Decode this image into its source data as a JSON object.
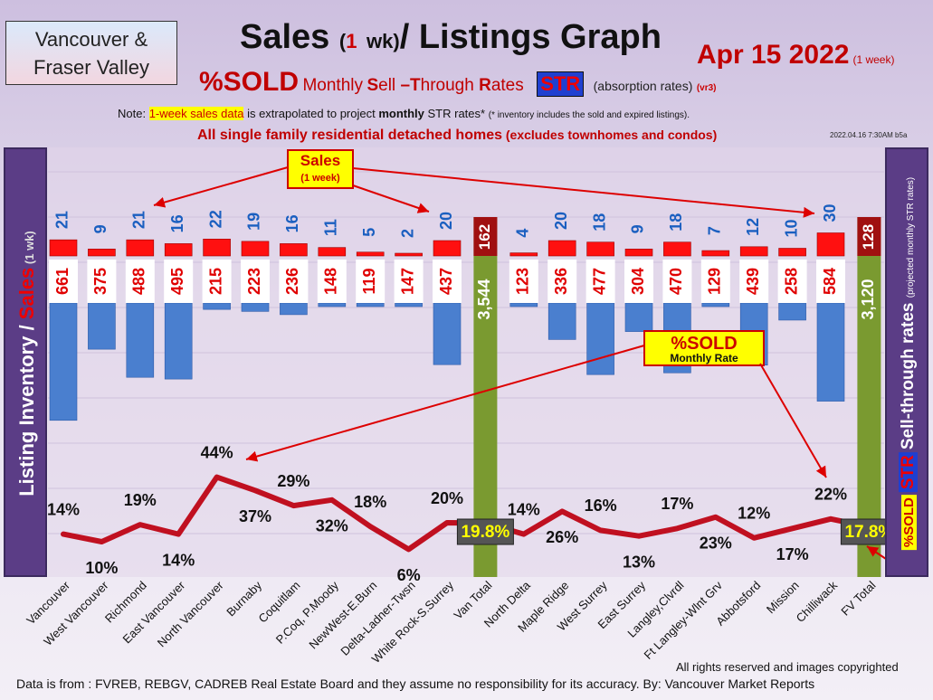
{
  "region_box": {
    "line1": "Vancouver &",
    "line2": "Fraser Valley"
  },
  "title": {
    "part1": "Sales",
    "part2": "(",
    "part3": "1",
    "part4": "wk)",
    "part5": "/ Listings Graph"
  },
  "date": {
    "main": "Apr 15  2022",
    "sub": "(1 week)"
  },
  "subtitle": {
    "sold": "%SOLD",
    "monthly": "Monthly",
    "s1": "S",
    "ell": "ell ",
    "t1": "–T",
    "hrough": "hrough ",
    "r1": "R",
    "ates": "ates",
    "str": "STR",
    "absorption": "(absorption rates)",
    "version": "(vr3)"
  },
  "note": {
    "prefix": "Note: ",
    "highlight": "1-week sales data",
    "middle": " is extrapolated to project ",
    "bold": "monthly",
    "suffix": " STR rates* ",
    "tiny": "(* inventory includes the sold and expired listings)."
  },
  "scope": {
    "main": "All single family residential detached homes",
    "paren": " (excludes townhomes and condos)"
  },
  "timestamp": "2022.04.16 7:30AM b5a",
  "left_banner": {
    "part1": "Listing Inventory / ",
    "part2": "Sales",
    "part3": " (1 wk)"
  },
  "right_banner": {
    "sold": "%SOLD",
    "str": "STR",
    "text": "Sell-through rates",
    "small": "(projected monthly STR rates)"
  },
  "callouts": {
    "sales_title": "Sales",
    "sales_sub": "(1 week)",
    "sold_title": "%SOLD",
    "sold_sub": "Monthly Rate"
  },
  "footer": {
    "rights": "All rights reserved and  images copyrighted",
    "source": "Data is from : FVREB, REBGV, CADREB Real Estate Board and they assume no responsibility for its accuracy. By: Vancouver Market Reports"
  },
  "colors": {
    "sales": "#ff1010",
    "inventory": "#4a7fcf",
    "total": "#7a9a30",
    "sold_line": "#c01020",
    "accent": "#c00000"
  },
  "chart_data": {
    "type": "bar",
    "categories": [
      "Vancouver",
      "West Vancouver",
      "Richmond",
      "East Vancouver",
      "North Vancouver",
      "Burnaby",
      "Coquitlam",
      "P.Coq, P.Moody",
      "NewWest-E.Burn",
      "Delta-Ladner-Twsn",
      "White Rock-S.Surrey",
      "Van Total",
      "North Delta",
      "Maple Ridge",
      "West Surrey",
      "East Surrey",
      "Langley,Clvrdl",
      "Ft Langley-Wlnt Grv",
      "Abbotsford",
      "Mission",
      "Chilliwack",
      "FV Total"
    ],
    "series": [
      {
        "name": "Sales",
        "values": [
          21,
          9,
          21,
          16,
          22,
          19,
          16,
          11,
          5,
          2,
          20,
          162,
          4,
          20,
          18,
          9,
          18,
          7,
          12,
          10,
          30,
          128
        ]
      },
      {
        "name": "Listing Inventory",
        "values": [
          661,
          375,
          488,
          495,
          215,
          223,
          236,
          148,
          119,
          147,
          437,
          3544,
          123,
          336,
          477,
          304,
          470,
          129,
          439,
          258,
          584,
          3120
        ]
      },
      {
        "name": "%SOLD",
        "values": [
          14,
          10,
          19,
          14,
          44,
          37,
          29,
          32,
          18,
          6,
          20,
          19.8,
          14,
          26,
          16,
          13,
          17,
          23,
          12,
          17,
          22,
          17.8
        ]
      }
    ],
    "sold_labels": [
      "14%",
      "10%",
      "19%",
      "14%",
      "44%",
      "37%",
      "29%",
      "32%",
      "18%",
      "6%",
      "20%",
      "19.8%",
      "14%",
      "26%",
      "16%",
      "13%",
      "17%",
      "23%",
      "12%",
      "17%",
      "22%",
      "17.8%"
    ],
    "inventory_labels": [
      "661",
      "375",
      "488",
      "495",
      "215",
      "223",
      "236",
      "148",
      "119",
      "147",
      "437",
      "3,544",
      "123",
      "336",
      "477",
      "304",
      "470",
      "129",
      "439",
      "258",
      "584",
      "3,120"
    ],
    "total_indices": [
      11,
      21
    ]
  }
}
